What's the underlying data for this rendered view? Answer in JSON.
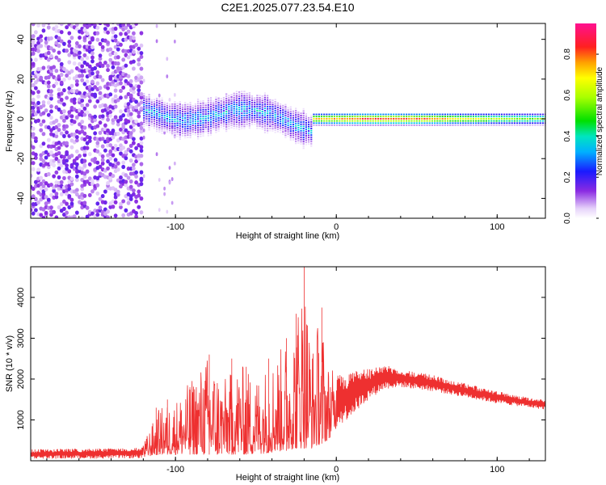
{
  "title": "C2E1.2025.077.23.54.E10",
  "chart_data": [
    {
      "type": "heatmap",
      "xlabel": "Height of straight line (km)",
      "ylabel": "Frequency (Hz)",
      "xlim": [
        -190,
        130
      ],
      "ylim": [
        -50,
        48
      ],
      "xticks": [
        -100,
        0,
        100
      ],
      "yticks": [
        -40,
        -20,
        0,
        20,
        40
      ],
      "colorbar": {
        "label": "Normalized spectral amplitude",
        "range": [
          0.0,
          0.95
        ],
        "ticks": [
          0.0,
          0.2,
          0.4,
          0.6,
          0.8
        ]
      },
      "regions": [
        {
          "x_range": [
            -190,
            -120
          ],
          "freq_range": [
            -50,
            48
          ],
          "amplitude": "low, broadband noise"
        },
        {
          "x_range": [
            -120,
            -15
          ],
          "freq_center": [
            3,
            0,
            -2,
            2,
            -5
          ],
          "freq_halfwidth": 7,
          "amplitude": "0.2-0.5"
        },
        {
          "x_range": [
            -15,
            130
          ],
          "freq_center": 0,
          "freq_halfwidth": 3,
          "amplitude": "0.5-0.95"
        }
      ]
    },
    {
      "type": "line",
      "xlabel": "Height of straight line (km)",
      "ylabel": "SNR (10 * v/v)",
      "xlim": [
        -190,
        130
      ],
      "ylim": [
        0,
        4750
      ],
      "xticks": [
        -100,
        0,
        100
      ],
      "yticks": [
        1000,
        2000,
        3000,
        4000
      ],
      "color": "#ee3030",
      "envelope": [
        {
          "x": -190,
          "lo": 50,
          "hi": 280
        },
        {
          "x": -150,
          "lo": 50,
          "hi": 300
        },
        {
          "x": -121,
          "lo": 60,
          "hi": 320
        },
        {
          "x": -118,
          "lo": 100,
          "hi": 600
        },
        {
          "x": -110,
          "lo": 150,
          "hi": 1300
        },
        {
          "x": -100,
          "lo": 150,
          "hi": 1500
        },
        {
          "x": -90,
          "lo": 150,
          "hi": 2000
        },
        {
          "x": -80,
          "lo": 150,
          "hi": 2600
        },
        {
          "x": -70,
          "lo": 150,
          "hi": 2000
        },
        {
          "x": -60,
          "lo": 150,
          "hi": 2400
        },
        {
          "x": -50,
          "lo": 150,
          "hi": 2100
        },
        {
          "x": -40,
          "lo": 200,
          "hi": 2500
        },
        {
          "x": -30,
          "lo": 250,
          "hi": 3000
        },
        {
          "x": -25,
          "lo": 300,
          "hi": 3600
        },
        {
          "x": -20,
          "lo": 300,
          "hi": 4750
        },
        {
          "x": -15,
          "lo": 300,
          "hi": 2800
        },
        {
          "x": -10,
          "lo": 400,
          "hi": 3700
        },
        {
          "x": -5,
          "lo": 500,
          "hi": 2400
        },
        {
          "x": 0,
          "lo": 800,
          "hi": 2100
        },
        {
          "x": 10,
          "lo": 1100,
          "hi": 2200
        },
        {
          "x": 20,
          "lo": 1500,
          "hi": 2250
        },
        {
          "x": 30,
          "lo": 1750,
          "hi": 2350
        },
        {
          "x": 40,
          "lo": 1800,
          "hi": 2250
        },
        {
          "x": 60,
          "lo": 1700,
          "hi": 2100
        },
        {
          "x": 80,
          "lo": 1550,
          "hi": 1900
        },
        {
          "x": 100,
          "lo": 1400,
          "hi": 1700
        },
        {
          "x": 120,
          "lo": 1300,
          "hi": 1550
        },
        {
          "x": 130,
          "lo": 1250,
          "hi": 1500
        }
      ],
      "spikes": [
        {
          "x": -112,
          "y": 1300
        },
        {
          "x": -105,
          "y": 1500
        },
        {
          "x": -91,
          "y": 1800
        },
        {
          "x": -79,
          "y": 2600
        },
        {
          "x": -74,
          "y": 1900
        },
        {
          "x": -65,
          "y": 2500
        },
        {
          "x": -56,
          "y": 2300
        },
        {
          "x": -42,
          "y": 2500
        },
        {
          "x": -31,
          "y": 3000
        },
        {
          "x": -25,
          "y": 3600
        },
        {
          "x": -20,
          "y": 4750
        },
        {
          "x": -9,
          "y": 3750
        }
      ]
    }
  ]
}
